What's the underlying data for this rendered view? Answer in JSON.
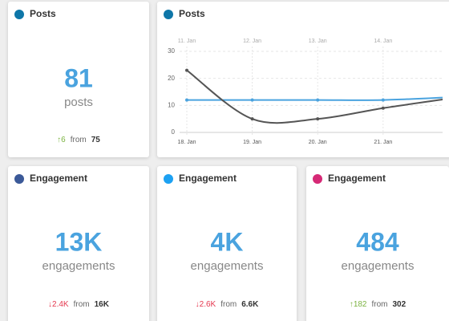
{
  "cards": [
    {
      "title": "Posts",
      "icon_color": "#0e76a8",
      "value": "81",
      "unit": "posts",
      "change": "↑6",
      "change_color": "#7cb342",
      "from_label": "from",
      "from": "75"
    },
    {
      "title": "Engagement",
      "icon_color": "#3b5998",
      "value": "13K",
      "unit": "engagements",
      "change": "↓2.4K",
      "change_color": "#e53950",
      "from_label": "from",
      "from": "16K"
    },
    {
      "title": "Engagement",
      "icon_color": "#1da1f2",
      "value": "4K",
      "unit": "engagements",
      "change": "↓2.6K",
      "change_color": "#e53950",
      "from_label": "from",
      "from": "6.6K"
    },
    {
      "title": "Engagement",
      "icon_color": "#d62976",
      "value": "484",
      "unit": "engagements",
      "change": "↑182",
      "change_color": "#7cb342",
      "from_label": "from",
      "from": "302"
    }
  ],
  "chart": {
    "type": "line",
    "title": "Posts",
    "icon_color": "#0e76a8",
    "categories": [
      "18. Jan",
      "19. Jan",
      "20. Jan",
      "21. Jan",
      null
    ],
    "compare_categories": [
      "11. Jan",
      "12. Jan",
      "13. Jan",
      "14. Jan",
      null
    ],
    "series": [
      {
        "color": "#4aa3df",
        "values": [
          12,
          12,
          12,
          12,
          13
        ]
      },
      {
        "color": "#555555",
        "values": [
          23,
          5,
          5,
          9,
          12.5
        ]
      }
    ],
    "ylim": [
      0,
      30
    ],
    "yticks": [
      0,
      10,
      20,
      30
    ],
    "grid": true
  }
}
